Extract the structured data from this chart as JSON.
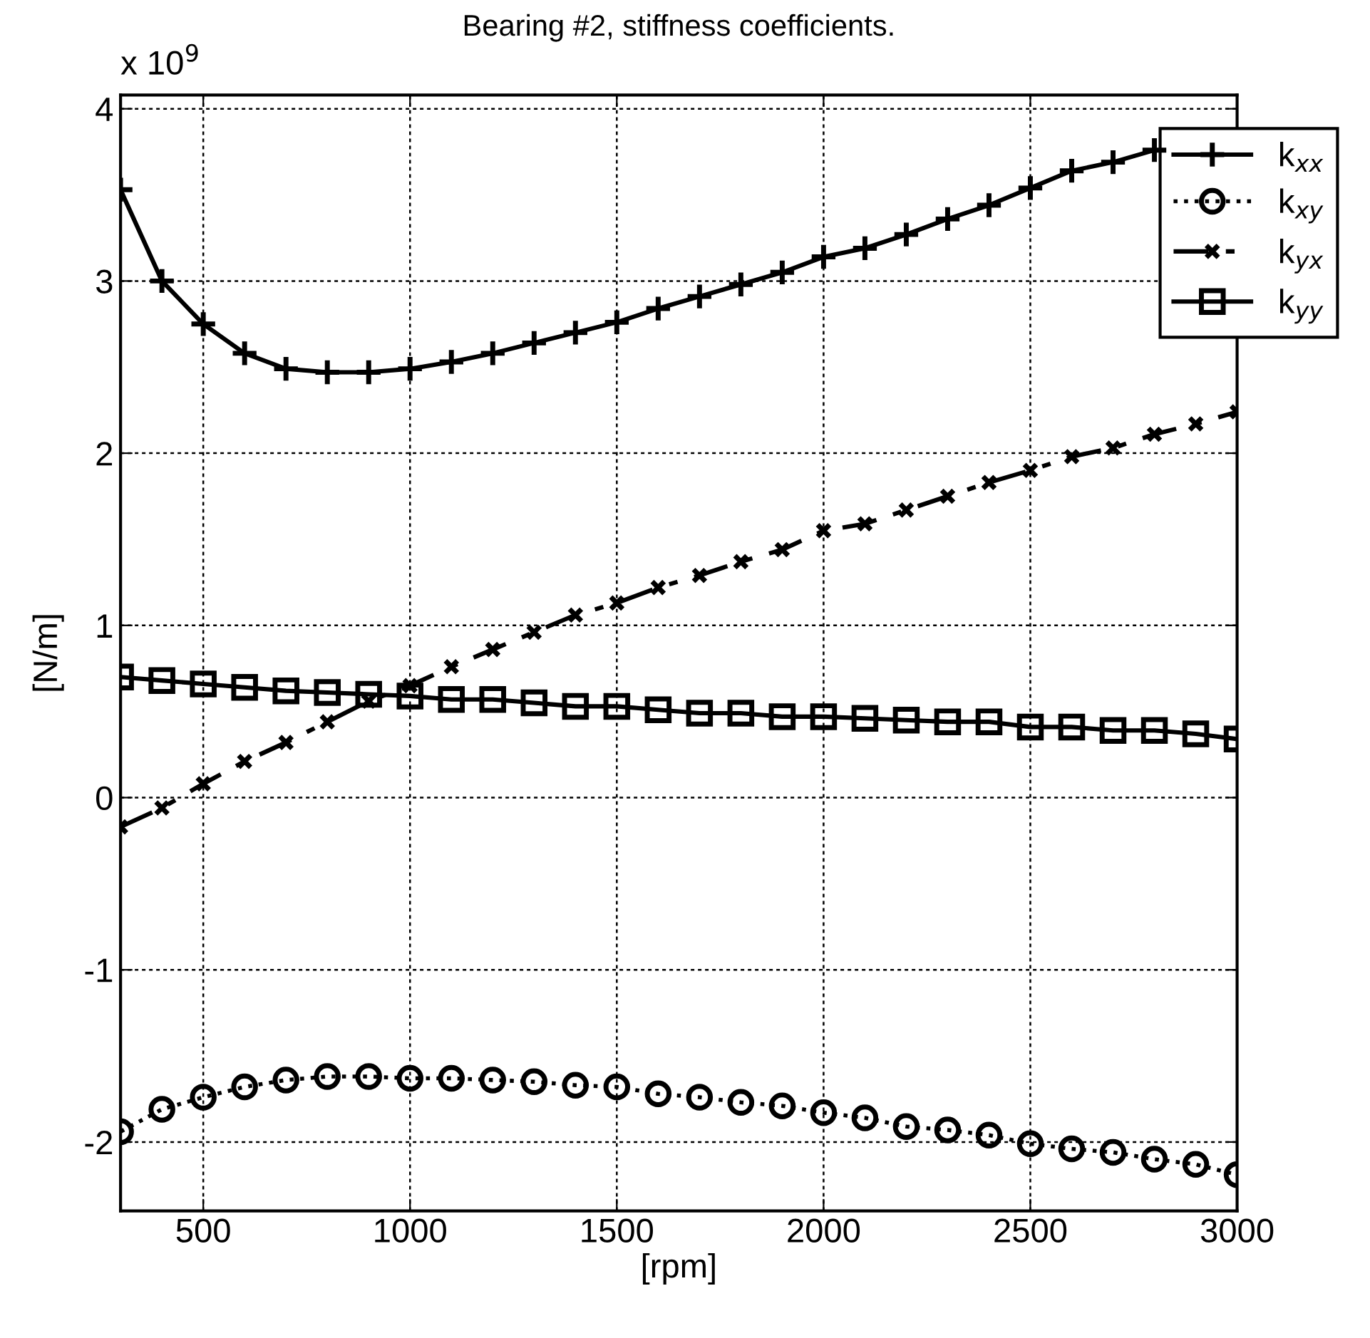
{
  "chart_data": {
    "type": "line",
    "title": "Bearing #2, stiffness coefficients.",
    "xlabel": "[rpm]",
    "ylabel": "[N/m]",
    "annotations": [
      "x 10$^{9}$"
    ],
    "x": [
      300,
      400,
      500,
      600,
      700,
      800,
      900,
      1000,
      1100,
      1200,
      1300,
      1400,
      1500,
      1600,
      1700,
      1800,
      1900,
      2000,
      2100,
      2200,
      2300,
      2400,
      2500,
      2600,
      2700,
      2800,
      2900,
      3000
    ],
    "series": [
      {
        "name": "k$_{xx}$",
        "color": "#000000",
        "marker": "plus",
        "line_style": "solid",
        "values": [
          3.53,
          3.0,
          2.75,
          2.58,
          2.49,
          2.47,
          2.47,
          2.49,
          2.53,
          2.58,
          2.64,
          2.7,
          2.76,
          2.84,
          2.91,
          2.98,
          3.05,
          3.14,
          3.19,
          3.27,
          3.36,
          3.44,
          3.54,
          3.64,
          3.69,
          3.76,
          null,
          null
        ]
      },
      {
        "name": "k$_{xy}$",
        "color": "#000000",
        "marker": "circle",
        "line_style": "dotted",
        "values": [
          -1.94,
          -1.81,
          -1.74,
          -1.68,
          -1.64,
          -1.62,
          -1.62,
          -1.63,
          -1.63,
          -1.64,
          -1.65,
          -1.67,
          -1.68,
          -1.72,
          -1.74,
          -1.77,
          -1.79,
          -1.83,
          -1.86,
          -1.91,
          -1.93,
          -1.96,
          -2.01,
          -2.04,
          -2.06,
          -2.1,
          -2.13,
          -2.19
        ]
      },
      {
        "name": "k$_{yx}$",
        "color": "#000000",
        "marker": "cross",
        "line_style": "dashed",
        "values": [
          -0.17,
          -0.06,
          0.08,
          0.21,
          0.32,
          0.44,
          0.56,
          0.65,
          0.76,
          0.86,
          0.96,
          1.06,
          1.13,
          1.22,
          1.29,
          1.37,
          1.44,
          1.55,
          1.59,
          1.67,
          1.75,
          1.83,
          1.9,
          1.98,
          2.03,
          2.11,
          2.17,
          2.24
        ]
      },
      {
        "name": "k$_{yy}$",
        "color": "#000000",
        "marker": "square",
        "line_style": "solid",
        "values": [
          0.7,
          0.68,
          0.66,
          0.64,
          0.62,
          0.61,
          0.6,
          0.59,
          0.57,
          0.57,
          0.55,
          0.53,
          0.53,
          0.51,
          0.49,
          0.49,
          0.47,
          0.47,
          0.46,
          0.45,
          0.44,
          0.44,
          0.41,
          0.41,
          0.39,
          0.39,
          0.37,
          0.34
        ]
      }
    ],
    "xlim": [
      300,
      3000
    ],
    "xticks": [
      500,
      1000,
      1500,
      2000,
      2500,
      3000
    ],
    "ylim": [
      -2.4,
      4.08
    ],
    "yticks": [
      -2,
      -1,
      0,
      1,
      2,
      3,
      4
    ],
    "grid": true,
    "legend": "top right"
  }
}
